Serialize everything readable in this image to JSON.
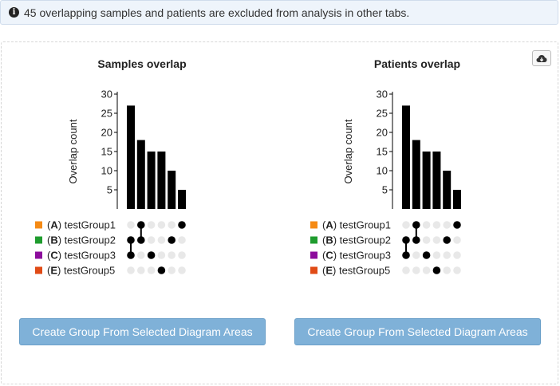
{
  "info": {
    "icon": "info-circle-icon",
    "message": "45 overlapping samples and patients are excluded from analysis in other tabs."
  },
  "toolbar": {
    "download_icon": "cloud-download-icon"
  },
  "charts": [
    {
      "title": "Samples overlap",
      "ylabel": "Overlap count",
      "ylim": [
        0,
        30
      ],
      "yticks": [
        5,
        10,
        15,
        20,
        25,
        30
      ],
      "bar_values": [
        27,
        18,
        15,
        15,
        10,
        5
      ],
      "bar_members": [
        [
          1,
          2
        ],
        [
          0,
          1
        ],
        [
          2,
          3
        ],
        [
          1,
          4
        ],
        [
          3,
          5
        ],
        [
          0,
          5
        ]
      ],
      "create_button_label": "Create Group From Selected Diagram Areas"
    },
    {
      "title": "Patients overlap",
      "ylabel": "Overlap count",
      "ylim": [
        0,
        30
      ],
      "yticks": [
        5,
        10,
        15,
        20,
        25,
        30
      ],
      "bar_values": [
        27,
        18,
        15,
        15,
        10,
        5
      ],
      "bar_members": [
        [
          1,
          2
        ],
        [
          0,
          1
        ],
        [
          2,
          3
        ],
        [
          1,
          4
        ],
        [
          3,
          5
        ],
        [
          0,
          5
        ]
      ],
      "create_button_label": "Create Group From Selected Diagram Areas"
    }
  ],
  "groups": [
    {
      "letter": "A",
      "name": "testGroup1",
      "color": "#f58a14"
    },
    {
      "letter": "B",
      "name": "testGroup2",
      "color": "#1f9c2e"
    },
    {
      "letter": "C",
      "name": "testGroup3",
      "color": "#8c0c9c"
    },
    {
      "letter": "E",
      "name": "testGroup5",
      "color": "#e04b16"
    }
  ],
  "chart_data": [
    {
      "type": "bar",
      "title": "Samples overlap",
      "ylabel": "Overlap count",
      "values": [
        27,
        18,
        15,
        15,
        10,
        5
      ],
      "ylim": [
        0,
        30
      ],
      "sets": [
        "testGroup1",
        "testGroup2",
        "testGroup3",
        "testGroup5"
      ]
    },
    {
      "type": "bar",
      "title": "Patients overlap",
      "ylabel": "Overlap count",
      "values": [
        27,
        18,
        15,
        15,
        10,
        5
      ],
      "ylim": [
        0,
        30
      ],
      "sets": [
        "testGroup1",
        "testGroup2",
        "testGroup3",
        "testGroup5"
      ]
    }
  ]
}
